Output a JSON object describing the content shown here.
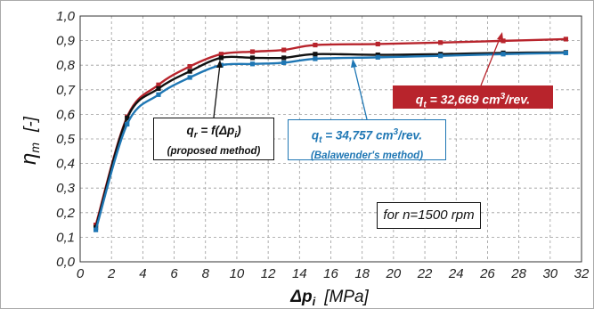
{
  "chart_data": {
    "type": "line",
    "xlabel_symbol": "Δp",
    "xlabel_sub": "i",
    "xlabel_unit": "[MPa]",
    "ylabel_symbol": "η",
    "ylabel_sub": "m",
    "ylabel_unit": "[-]",
    "xlim": [
      0,
      32
    ],
    "ylim": [
      0,
      1.0
    ],
    "xticks": [
      "0",
      "2",
      "4",
      "6",
      "8",
      "10",
      "12",
      "14",
      "16",
      "18",
      "20",
      "22",
      "24",
      "26",
      "28",
      "30",
      "32"
    ],
    "yticks": [
      "0,0",
      "0,1",
      "0,2",
      "0,3",
      "0,4",
      "0,5",
      "0,6",
      "0,7",
      "0,8",
      "0,9",
      "1,0"
    ],
    "grid": "dashed",
    "series": [
      {
        "color": "#b8242c",
        "points": [
          [
            1,
            0.15
          ],
          [
            3,
            0.59
          ],
          [
            5,
            0.72
          ],
          [
            7,
            0.795
          ],
          [
            9,
            0.845
          ],
          [
            11,
            0.855
          ],
          [
            13,
            0.862
          ],
          [
            15,
            0.882
          ],
          [
            19,
            0.886
          ],
          [
            23,
            0.892
          ],
          [
            27,
            0.899
          ],
          [
            31,
            0.906
          ]
        ]
      },
      {
        "color": "#111111",
        "points": [
          [
            1,
            0.14
          ],
          [
            3,
            0.585
          ],
          [
            5,
            0.705
          ],
          [
            7,
            0.775
          ],
          [
            9,
            0.83
          ],
          [
            11,
            0.83
          ],
          [
            13,
            0.83
          ],
          [
            15,
            0.845
          ],
          [
            19,
            0.842
          ],
          [
            23,
            0.845
          ],
          [
            27,
            0.85
          ],
          [
            31,
            0.852
          ]
        ]
      },
      {
        "color": "#1f77b4",
        "points": [
          [
            1,
            0.13
          ],
          [
            3,
            0.56
          ],
          [
            5,
            0.68
          ],
          [
            7,
            0.75
          ],
          [
            9,
            0.8
          ],
          [
            11,
            0.805
          ],
          [
            13,
            0.81
          ],
          [
            15,
            0.826
          ],
          [
            19,
            0.832
          ],
          [
            23,
            0.838
          ],
          [
            27,
            0.845
          ],
          [
            31,
            0.85
          ]
        ]
      }
    ]
  },
  "annotations": {
    "red": {
      "q": "q",
      "sub": "t",
      "text": " = 32,669 cm",
      "sup": "3",
      "tail": "/rev."
    },
    "black": {
      "q": "q",
      "sub": "r",
      "text": " = f(Δp",
      "sub2": "i",
      "tail": ")",
      "line2": "(proposed method)"
    },
    "blue": {
      "q": "q",
      "sub": "t",
      "text": " = 34,757 cm",
      "sup": "3",
      "tail": "/rev.",
      "line2": "(Balawender's method)"
    },
    "note": "for n=1500 rpm"
  }
}
